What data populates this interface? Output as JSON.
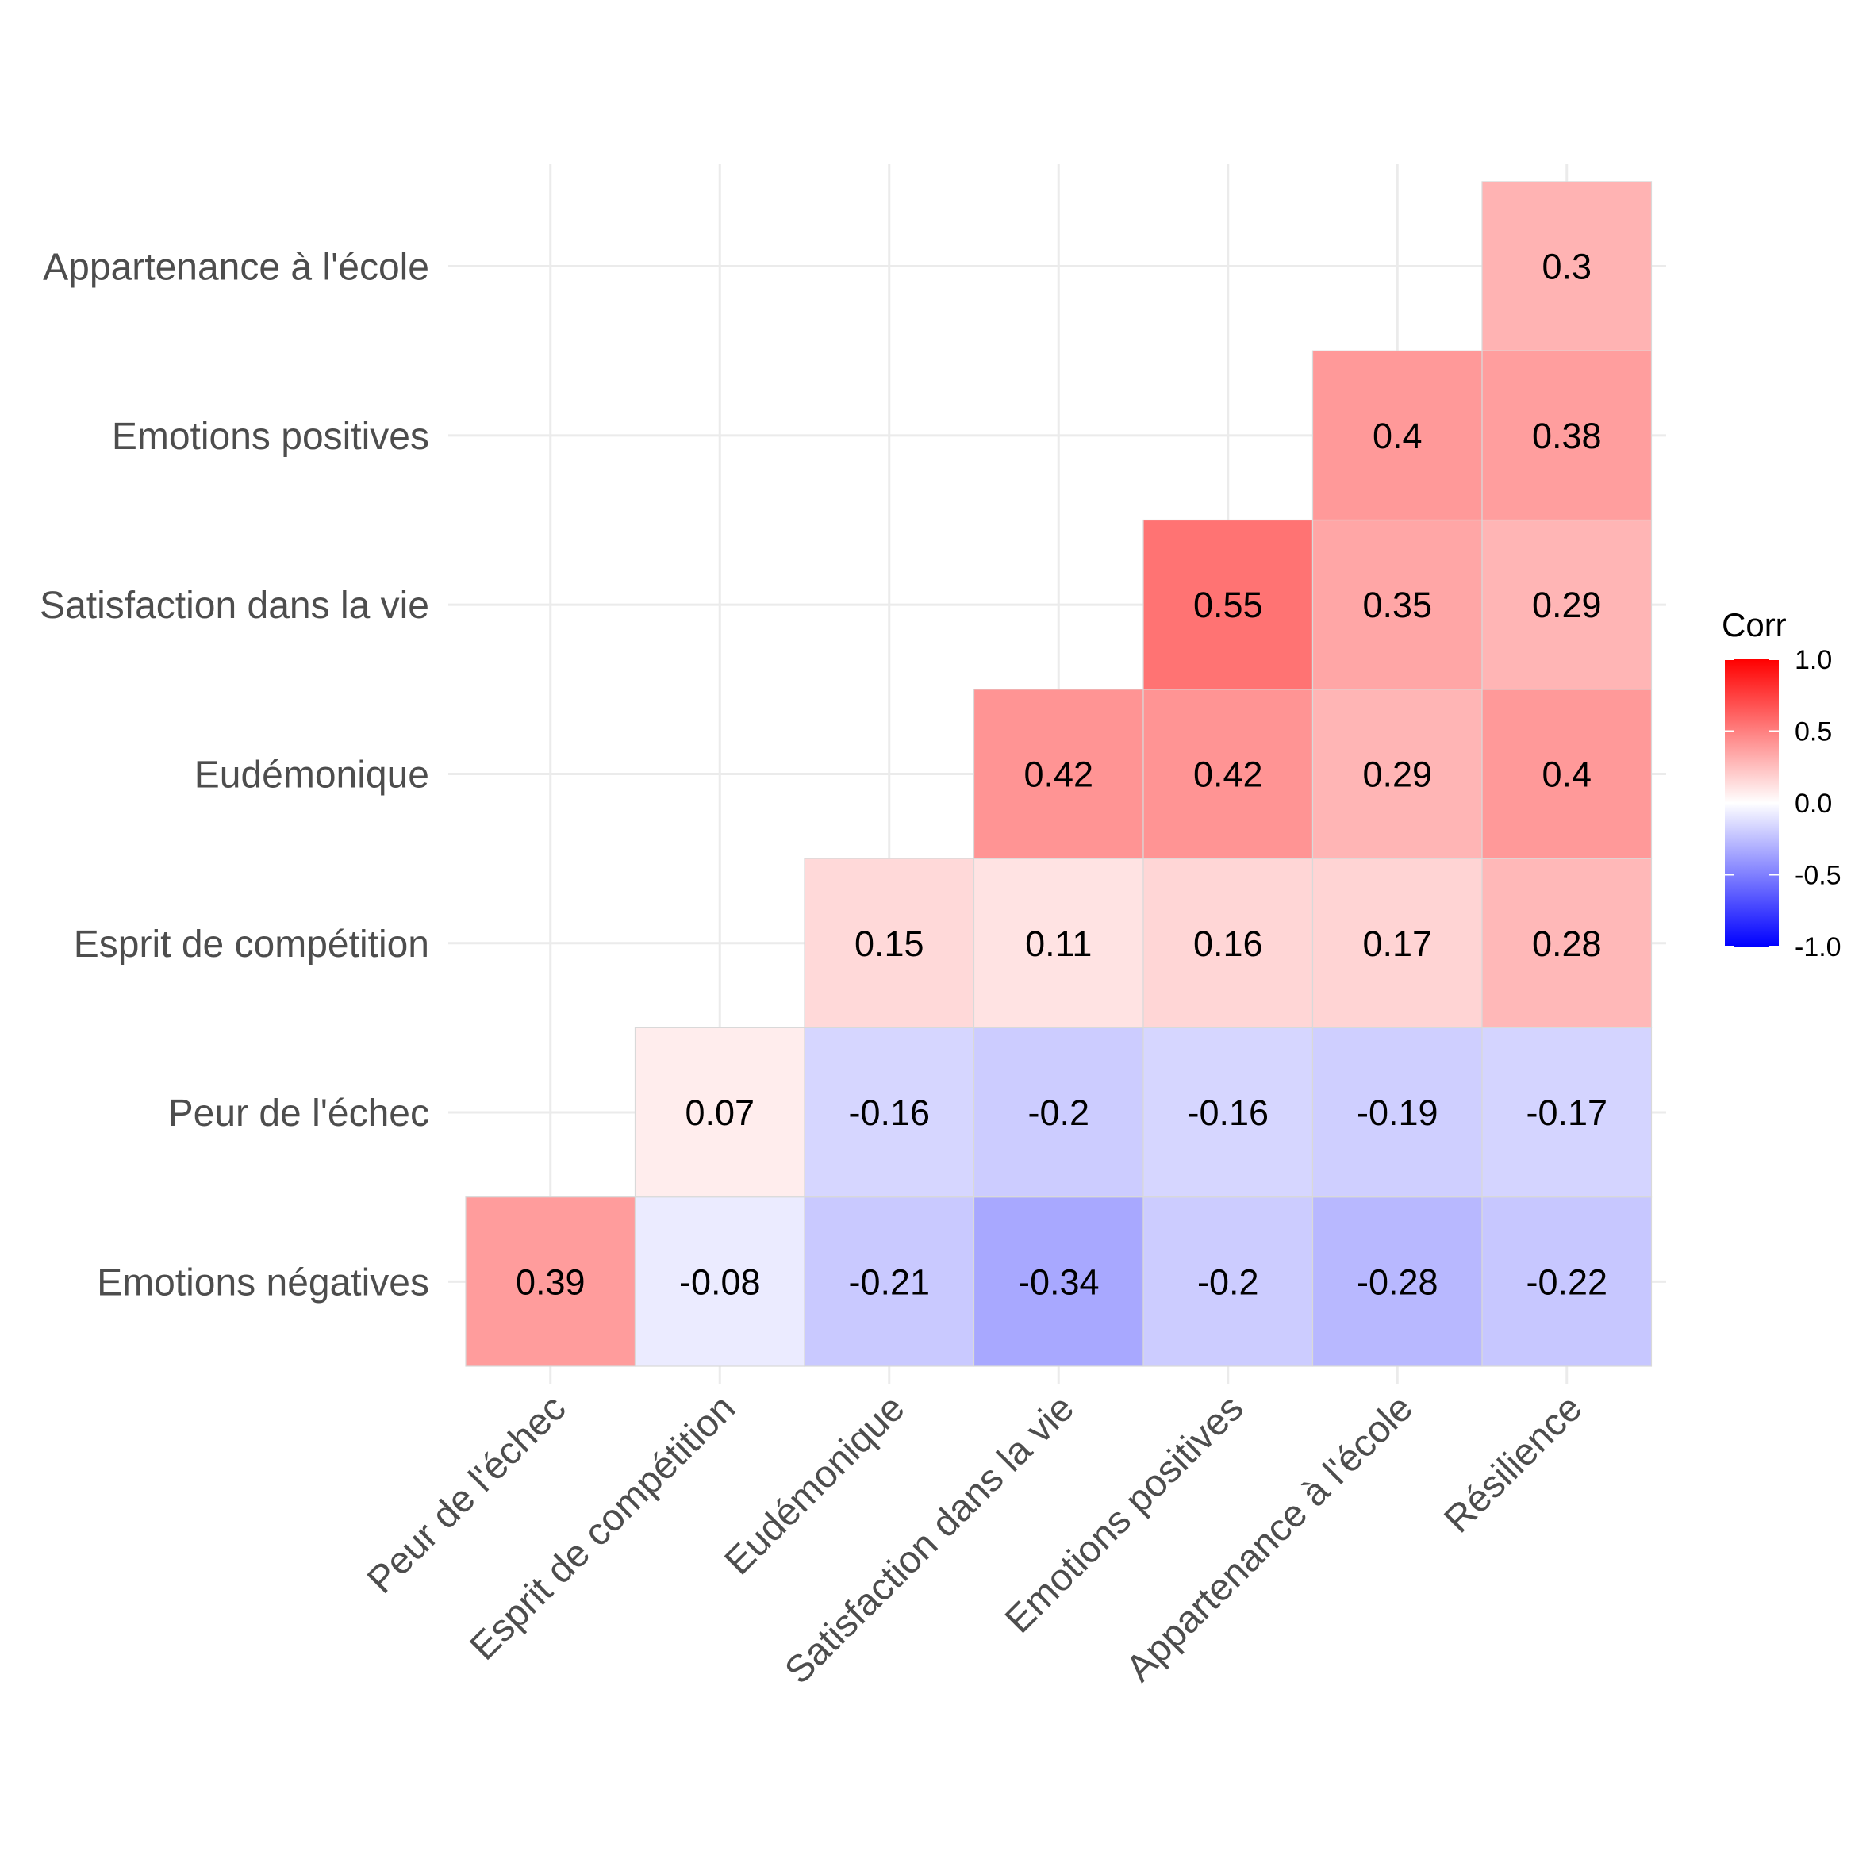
{
  "chart_data": {
    "type": "heatmap",
    "x_categories": [
      "Peur de l'échec",
      "Esprit de compétition",
      "Eudémonique",
      "Satisfaction dans la vie",
      "Emotions positives",
      "Appartenance à l'école",
      "Résilience"
    ],
    "y_categories": [
      "Emotions négatives",
      "Peur de l'échec",
      "Esprit de compétition",
      "Eudémonique",
      "Satisfaction dans la vie",
      "Emotions positives",
      "Appartenance à l'école"
    ],
    "cells": [
      {
        "x": "Peur de l'échec",
        "y": "Emotions négatives",
        "value": 0.39,
        "label": "0.39"
      },
      {
        "x": "Esprit de compétition",
        "y": "Emotions négatives",
        "value": -0.08,
        "label": "-0.08"
      },
      {
        "x": "Eudémonique",
        "y": "Emotions négatives",
        "value": -0.21,
        "label": "-0.21"
      },
      {
        "x": "Satisfaction dans la vie",
        "y": "Emotions négatives",
        "value": -0.34,
        "label": "-0.34"
      },
      {
        "x": "Emotions positives",
        "y": "Emotions négatives",
        "value": -0.2,
        "label": "-0.2"
      },
      {
        "x": "Appartenance à l'école",
        "y": "Emotions négatives",
        "value": -0.28,
        "label": "-0.28"
      },
      {
        "x": "Résilience",
        "y": "Emotions négatives",
        "value": -0.22,
        "label": "-0.22"
      },
      {
        "x": "Esprit de compétition",
        "y": "Peur de l'échec",
        "value": 0.07,
        "label": "0.07"
      },
      {
        "x": "Eudémonique",
        "y": "Peur de l'échec",
        "value": -0.16,
        "label": "-0.16"
      },
      {
        "x": "Satisfaction dans la vie",
        "y": "Peur de l'échec",
        "value": -0.2,
        "label": "-0.2"
      },
      {
        "x": "Emotions positives",
        "y": "Peur de l'échec",
        "value": -0.16,
        "label": "-0.16"
      },
      {
        "x": "Appartenance à l'école",
        "y": "Peur de l'échec",
        "value": -0.19,
        "label": "-0.19"
      },
      {
        "x": "Résilience",
        "y": "Peur de l'échec",
        "value": -0.17,
        "label": "-0.17"
      },
      {
        "x": "Eudémonique",
        "y": "Esprit de compétition",
        "value": 0.15,
        "label": "0.15"
      },
      {
        "x": "Satisfaction dans la vie",
        "y": "Esprit de compétition",
        "value": 0.11,
        "label": "0.11"
      },
      {
        "x": "Emotions positives",
        "y": "Esprit de compétition",
        "value": 0.16,
        "label": "0.16"
      },
      {
        "x": "Appartenance à l'école",
        "y": "Esprit de compétition",
        "value": 0.17,
        "label": "0.17"
      },
      {
        "x": "Résilience",
        "y": "Esprit de compétition",
        "value": 0.28,
        "label": "0.28"
      },
      {
        "x": "Satisfaction dans la vie",
        "y": "Eudémonique",
        "value": 0.42,
        "label": "0.42"
      },
      {
        "x": "Emotions positives",
        "y": "Eudémonique",
        "value": 0.42,
        "label": "0.42"
      },
      {
        "x": "Appartenance à l'école",
        "y": "Eudémonique",
        "value": 0.29,
        "label": "0.29"
      },
      {
        "x": "Résilience",
        "y": "Eudémonique",
        "value": 0.4,
        "label": "0.4"
      },
      {
        "x": "Emotions positives",
        "y": "Satisfaction dans la vie",
        "value": 0.55,
        "label": "0.55"
      },
      {
        "x": "Appartenance à l'école",
        "y": "Satisfaction dans la vie",
        "value": 0.35,
        "label": "0.35"
      },
      {
        "x": "Résilience",
        "y": "Satisfaction dans la vie",
        "value": 0.29,
        "label": "0.29"
      },
      {
        "x": "Appartenance à l'école",
        "y": "Emotions positives",
        "value": 0.4,
        "label": "0.4"
      },
      {
        "x": "Résilience",
        "y": "Emotions positives",
        "value": 0.38,
        "label": "0.38"
      },
      {
        "x": "Résilience",
        "y": "Appartenance à l'école",
        "value": 0.3,
        "label": "0.3"
      }
    ],
    "legend": {
      "title": "Corr",
      "position": "right",
      "range": [
        -1,
        1
      ],
      "ticks": [
        1.0,
        0.5,
        0.0,
        -0.5,
        -1.0
      ],
      "tick_labels": [
        "1.0",
        "0.5",
        "0.0",
        "-0.5",
        "-1.0"
      ],
      "colors": {
        "low": "#0000ff",
        "mid": "#ffffff",
        "high": "#ff0000"
      }
    },
    "grid": true
  }
}
